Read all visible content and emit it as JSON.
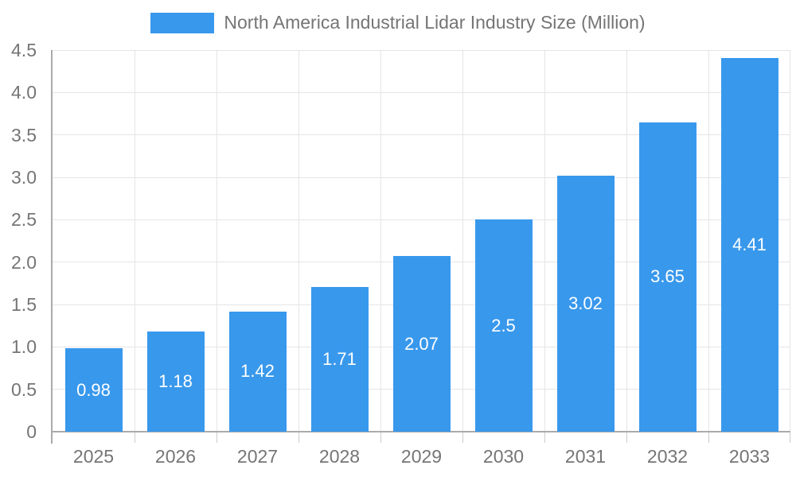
{
  "chart_data": {
    "type": "bar",
    "title": "North America Industrial Lidar Industry Size (Million)",
    "categories": [
      "2025",
      "2026",
      "2027",
      "2028",
      "2029",
      "2030",
      "2031",
      "2032",
      "2033"
    ],
    "values": [
      0.98,
      1.18,
      1.42,
      1.71,
      2.07,
      2.5,
      3.02,
      3.65,
      4.41
    ],
    "value_labels": [
      "0.98",
      "1.18",
      "1.42",
      "1.71",
      "2.07",
      "2.5",
      "3.02",
      "3.65",
      "4.41"
    ],
    "xlabel": "",
    "ylabel": "",
    "ylim": [
      0,
      4.5
    ],
    "y_ticks": [
      "0",
      "0.5",
      "1.0",
      "1.5",
      "2.0",
      "2.5",
      "3.0",
      "3.5",
      "4.0",
      "4.5"
    ],
    "grid": true,
    "legend_position": "top",
    "colors": {
      "bar": "#3898EC",
      "grid": "#e5e5e5",
      "axis_line": "#aaaaaa",
      "tick": "#cccccc",
      "axis_text": "#757575",
      "value_label_text": "#ffffff",
      "background": "#ffffff"
    }
  }
}
